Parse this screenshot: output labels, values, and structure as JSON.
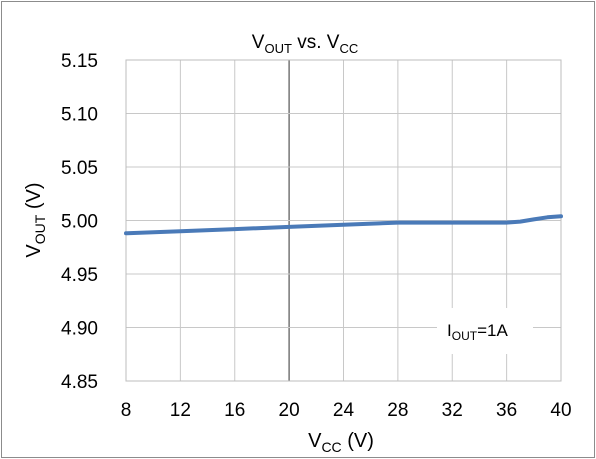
{
  "chart_data": {
    "type": "line",
    "title": {
      "main": "V",
      "sub1": "OUT",
      "mid": " vs. V",
      "sub2": "CC"
    },
    "xlabel": {
      "main": "V",
      "sub": "CC",
      "unit": " (V)"
    },
    "ylabel": {
      "main": "V",
      "sub": "OUT",
      "unit": " (V)"
    },
    "xlim": [
      8,
      40
    ],
    "ylim": [
      4.85,
      5.15
    ],
    "x_ticks": [
      "8",
      "12",
      "16",
      "20",
      "24",
      "28",
      "32",
      "36",
      "40"
    ],
    "y_ticks": [
      "5.15",
      "5.10",
      "5.05",
      "5.00",
      "4.95",
      "4.90",
      "4.85"
    ],
    "grid": true,
    "annotation": {
      "main": "I",
      "sub": "OUT",
      "rest": "=1A"
    },
    "series_color": "#4a7ab8",
    "series": [
      {
        "x": [
          8,
          12,
          16,
          20,
          24,
          28,
          32,
          36,
          37,
          38,
          39,
          40
        ],
        "y": [
          4.988,
          4.99,
          4.992,
          4.994,
          4.996,
          4.998,
          4.998,
          4.998,
          4.999,
          5.001,
          5.003,
          5.004
        ]
      }
    ]
  }
}
